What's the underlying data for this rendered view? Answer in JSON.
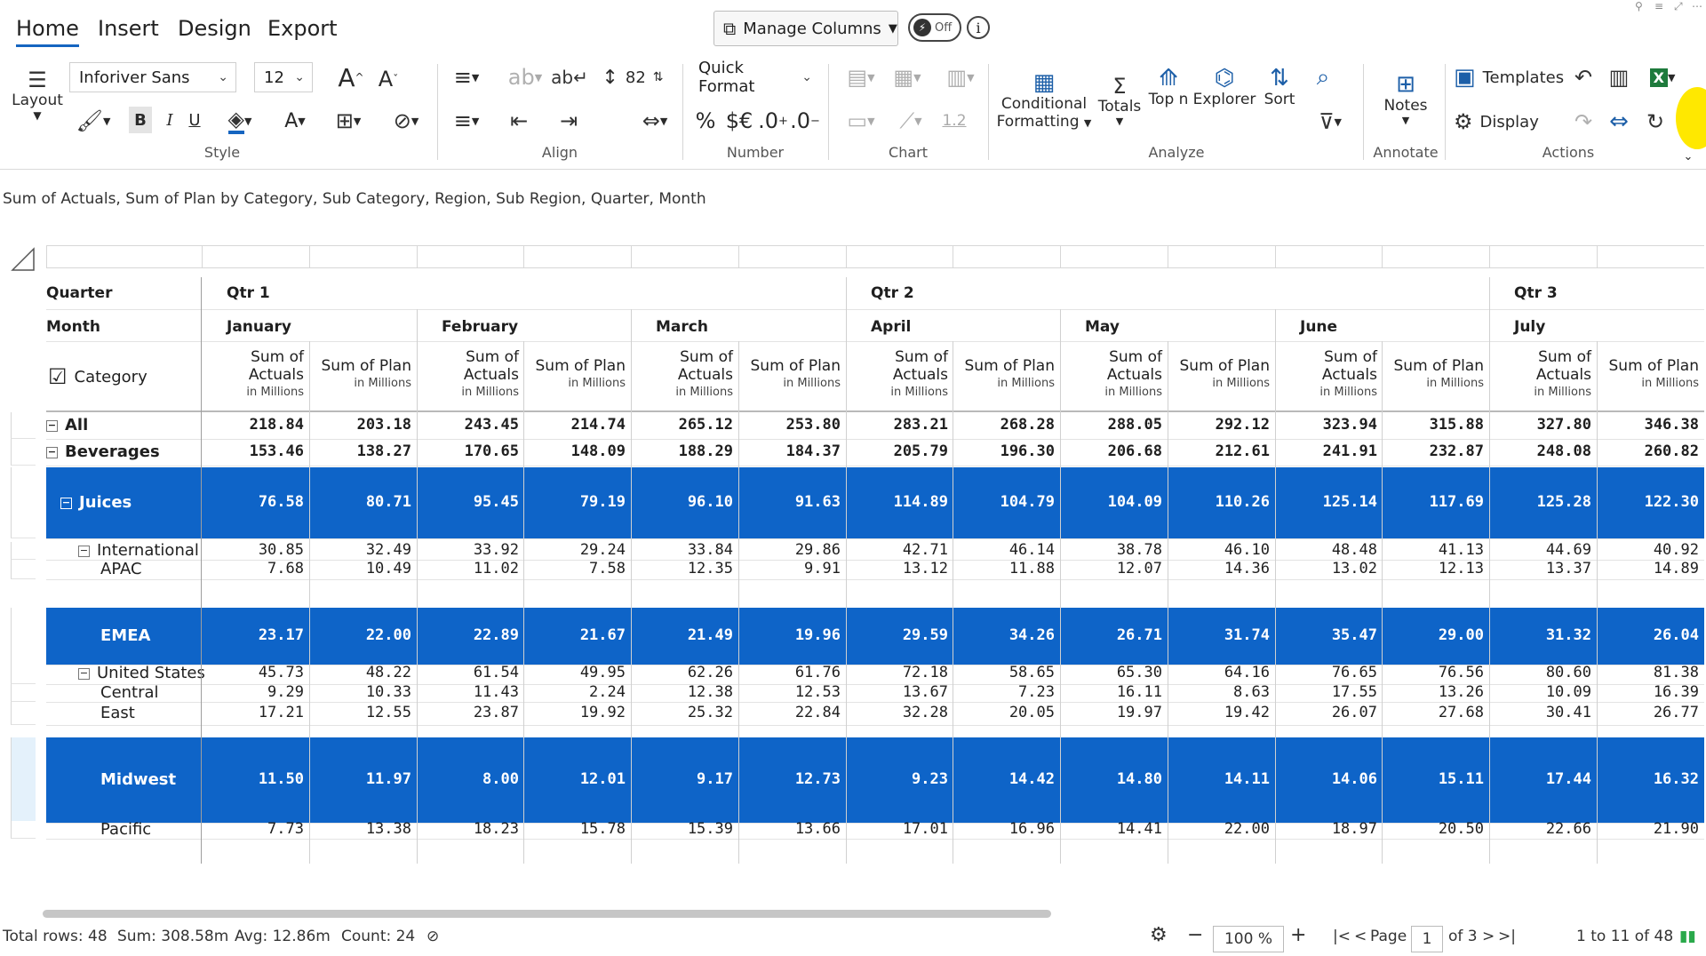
{
  "tabs": [
    "Home",
    "Insert",
    "Design",
    "Export"
  ],
  "top": {
    "manage_columns": "Manage Columns",
    "toggle": "Off",
    "info": "i"
  },
  "ribbon": {
    "layout": "Layout",
    "font_name": "Inforiver Sans",
    "font_size": "12",
    "row_height": "82",
    "quick_format": "Quick Format",
    "number_glyphs": {
      "percent": "%",
      "currency": "$€",
      "inc_dec": ".0",
      "dec_dec": ".0"
    },
    "conditional": "Conditional",
    "formatting": "Formatting",
    "totals": "Totals",
    "topn": "Top n",
    "explorer": "Explorer",
    "sort": "Sort",
    "notes": "Notes",
    "templates": "Templates",
    "display": "Display",
    "chart_value": "1.2",
    "groups": {
      "style": "Style",
      "align": "Align",
      "number": "Number",
      "chart": "Chart",
      "analyze": "Analyze",
      "annotate": "Annotate",
      "actions": "Actions"
    }
  },
  "subtitle": "Sum of Actuals, Sum of Plan by Category, Sub Category, Region, Sub Region, Quarter, Month",
  "table": {
    "hdr_quarter": "Quarter",
    "hdr_month": "Month",
    "hdr_category": "Category",
    "quarters": [
      "Qtr 1",
      "Qtr 2",
      "Qtr 3"
    ],
    "months": [
      "January",
      "February",
      "March",
      "April",
      "May",
      "June",
      "July"
    ],
    "measure_actuals_1": "Sum of",
    "measure_actuals_2": "Actuals",
    "measure_plan": "Sum of Plan",
    "unit": "in Millions",
    "rows": [
      {
        "label": "All",
        "level": 0,
        "expander": "−",
        "bold": true,
        "sel": false,
        "values": [
          "218.84",
          "203.18",
          "243.45",
          "214.74",
          "265.12",
          "253.80",
          "283.21",
          "268.28",
          "288.05",
          "292.12",
          "323.94",
          "315.88",
          "327.80",
          "346.38"
        ]
      },
      {
        "label": "Beverages",
        "level": 0,
        "expander": "−",
        "bold": true,
        "sel": false,
        "values": [
          "153.46",
          "138.27",
          "170.65",
          "148.09",
          "188.29",
          "184.37",
          "205.79",
          "196.30",
          "206.68",
          "212.61",
          "241.91",
          "232.87",
          "248.08",
          "260.82"
        ]
      },
      {
        "label": "Juices",
        "level": 1,
        "expander": "−",
        "bold": true,
        "sel": true,
        "values": [
          "76.58",
          "80.71",
          "95.45",
          "79.19",
          "96.10",
          "91.63",
          "114.89",
          "104.79",
          "104.09",
          "110.26",
          "125.14",
          "117.69",
          "125.28",
          "122.30"
        ]
      },
      {
        "label": "International",
        "level": 2,
        "expander": "−",
        "bold": false,
        "sel": false,
        "values": [
          "30.85",
          "32.49",
          "33.92",
          "29.24",
          "33.84",
          "29.86",
          "42.71",
          "46.14",
          "38.78",
          "46.10",
          "48.48",
          "41.13",
          "44.69",
          "40.92"
        ]
      },
      {
        "label": "APAC",
        "level": 3,
        "expander": "",
        "bold": false,
        "sel": false,
        "values": [
          "7.68",
          "10.49",
          "11.02",
          "7.58",
          "12.35",
          "9.91",
          "13.12",
          "11.88",
          "12.07",
          "14.36",
          "13.02",
          "12.13",
          "13.37",
          "14.89"
        ]
      },
      {
        "label": "EMEA",
        "level": 3,
        "expander": "",
        "bold": true,
        "sel": true,
        "values": [
          "23.17",
          "22.00",
          "22.89",
          "21.67",
          "21.49",
          "19.96",
          "29.59",
          "34.26",
          "26.71",
          "31.74",
          "35.47",
          "29.00",
          "31.32",
          "26.04"
        ]
      },
      {
        "label": "United States",
        "level": 2,
        "expander": "−",
        "bold": false,
        "sel": false,
        "values": [
          "45.73",
          "48.22",
          "61.54",
          "49.95",
          "62.26",
          "61.76",
          "72.18",
          "58.65",
          "65.30",
          "64.16",
          "76.65",
          "76.56",
          "80.60",
          "81.38"
        ]
      },
      {
        "label": "Central",
        "level": 3,
        "expander": "",
        "bold": false,
        "sel": false,
        "values": [
          "9.29",
          "10.33",
          "11.43",
          "2.24",
          "12.38",
          "12.53",
          "13.67",
          "7.23",
          "16.11",
          "8.63",
          "17.55",
          "13.26",
          "10.09",
          "16.39"
        ]
      },
      {
        "label": "East",
        "level": 3,
        "expander": "",
        "bold": false,
        "sel": false,
        "values": [
          "17.21",
          "12.55",
          "23.87",
          "19.92",
          "25.32",
          "22.84",
          "32.28",
          "20.05",
          "19.97",
          "19.42",
          "26.07",
          "27.68",
          "30.41",
          "26.77"
        ]
      },
      {
        "label": "Midwest",
        "level": 3,
        "expander": "",
        "bold": true,
        "sel": true,
        "values": [
          "11.50",
          "11.97",
          "8.00",
          "12.01",
          "9.17",
          "12.73",
          "9.23",
          "14.42",
          "14.80",
          "14.11",
          "14.06",
          "15.11",
          "17.44",
          "16.32"
        ]
      },
      {
        "label": "Pacific",
        "level": 3,
        "expander": "",
        "bold": false,
        "sel": false,
        "values": [
          "7.73",
          "13.38",
          "18.23",
          "15.78",
          "15.39",
          "13.66",
          "17.01",
          "16.96",
          "14.41",
          "22.00",
          "18.97",
          "20.50",
          "22.66",
          "21.90"
        ]
      }
    ]
  },
  "status": {
    "total_rows": "Total rows: 48",
    "sum": "Sum: 308.58m",
    "avg": "Avg: 12.86m",
    "count": "Count: 24",
    "zoom": "100 %",
    "page_label": "Page",
    "page_num": "1",
    "page_of": "of 3",
    "range": "1 to 11 of 48"
  }
}
